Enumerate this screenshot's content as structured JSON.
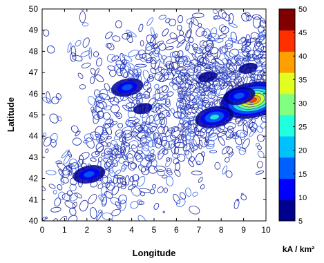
{
  "chart_data": {
    "type": "heatmap",
    "xlabel": "Longitude",
    "ylabel": "Latitude",
    "xlim": [
      0,
      10
    ],
    "ylim": [
      40,
      50
    ],
    "x_ticks": [
      0,
      1,
      2,
      3,
      4,
      5,
      6,
      7,
      8,
      9,
      10
    ],
    "y_ticks": [
      40,
      41,
      42,
      43,
      44,
      45,
      46,
      47,
      48,
      49,
      50
    ],
    "grid": false,
    "colorbar": {
      "label": "kA / km²",
      "range": [
        5,
        50
      ],
      "ticks": [
        5,
        10,
        15,
        20,
        25,
        30,
        35,
        40,
        45,
        50
      ],
      "colors": [
        "#00008f",
        "#0000ff",
        "#0060ff",
        "#00c0ff",
        "#20ffe0",
        "#80ff80",
        "#e0ff20",
        "#ffa000",
        "#ff3000",
        "#800000"
      ]
    },
    "density_hotspots": [
      {
        "lon": 9.4,
        "lat": 45.7,
        "value": 45
      },
      {
        "lon": 7.7,
        "lat": 44.9,
        "value": 25
      },
      {
        "lon": 8.8,
        "lat": 45.9,
        "value": 22
      },
      {
        "lon": 3.8,
        "lat": 46.3,
        "value": 20
      },
      {
        "lon": 2.1,
        "lat": 42.2,
        "value": 18
      },
      {
        "lon": 9.2,
        "lat": 47.2,
        "value": 12
      },
      {
        "lon": 7.4,
        "lat": 46.8,
        "value": 12
      },
      {
        "lon": 4.5,
        "lat": 45.3,
        "value": 8
      }
    ]
  }
}
